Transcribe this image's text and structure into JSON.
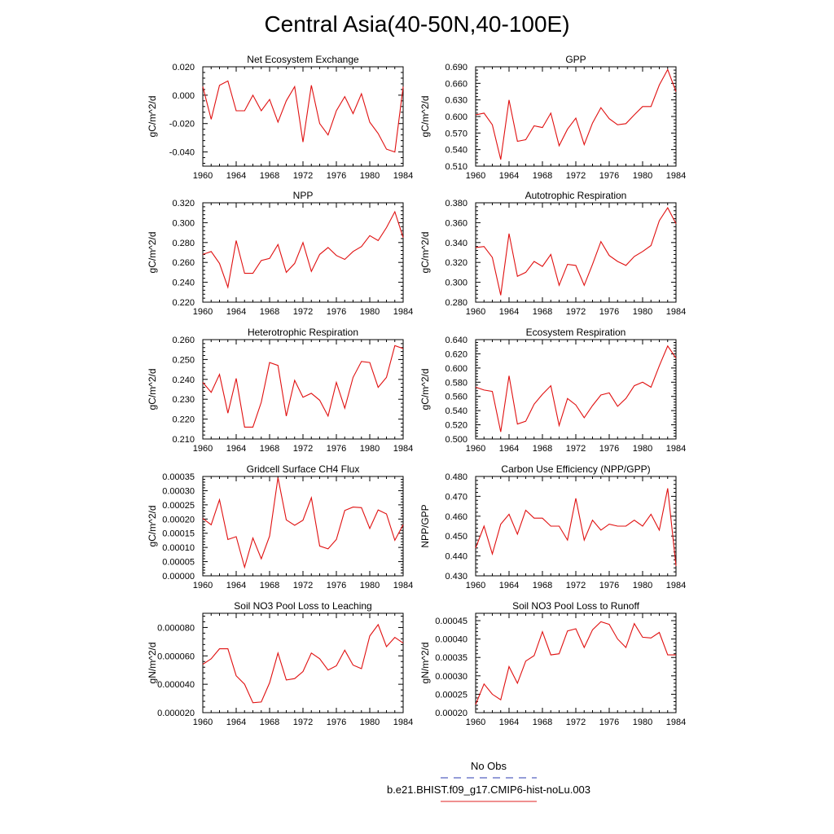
{
  "title": "Central Asia(40-50N,40-100E)",
  "legend": [
    {
      "label": "No Obs",
      "color": "#2b3bb0",
      "style": "dashed"
    },
    {
      "label": "b.e21.BHIST.f09_g17.CMIP6-hist-noLu.003",
      "color": "#e02020",
      "style": "solid"
    }
  ],
  "series_color": "#e01010",
  "chart_data": [
    {
      "type": "line",
      "title": "Net Ecosystem Exchange",
      "ylabel": "gC/m^2/d",
      "xlim": [
        1960,
        1984
      ],
      "ylim": [
        -0.05,
        0.02
      ],
      "xticks": [
        "1960",
        "1964",
        "1968",
        "1972",
        "1976",
        "1980",
        "1984"
      ],
      "yticks": [
        "0.020",
        "0.000",
        "-0.020",
        "-0.040"
      ],
      "ytick_values": [
        0.02,
        0.0,
        -0.02,
        -0.04
      ],
      "x": [
        1960,
        1961,
        1962,
        1963,
        1964,
        1965,
        1966,
        1967,
        1968,
        1969,
        1970,
        1971,
        1972,
        1973,
        1974,
        1975,
        1976,
        1977,
        1978,
        1979,
        1980,
        1981,
        1982,
        1983,
        1984
      ],
      "y": [
        0.006,
        -0.017,
        0.007,
        0.01,
        -0.011,
        -0.011,
        0.0,
        -0.011,
        -0.003,
        -0.019,
        -0.004,
        0.006,
        -0.033,
        0.007,
        -0.02,
        -0.028,
        -0.011,
        -0.001,
        -0.013,
        0.001,
        -0.019,
        -0.027,
        -0.038,
        -0.04,
        0.006
      ]
    },
    {
      "type": "line",
      "title": "GPP",
      "ylabel": "gC/m^2/d",
      "xlim": [
        1960,
        1984
      ],
      "ylim": [
        0.51,
        0.69
      ],
      "xticks": [
        "1960",
        "1964",
        "1968",
        "1972",
        "1976",
        "1980",
        "1984"
      ],
      "yticks": [
        "0.690",
        "0.660",
        "0.630",
        "0.600",
        "0.570",
        "0.540",
        "0.510"
      ],
      "ytick_values": [
        0.69,
        0.66,
        0.63,
        0.6,
        0.57,
        0.54,
        0.51
      ],
      "x": [
        1960,
        1961,
        1962,
        1963,
        1964,
        1965,
        1966,
        1967,
        1968,
        1969,
        1970,
        1971,
        1972,
        1973,
        1974,
        1975,
        1976,
        1977,
        1978,
        1979,
        1980,
        1981,
        1982,
        1983,
        1984
      ],
      "y": [
        0.603,
        0.606,
        0.585,
        0.522,
        0.63,
        0.555,
        0.558,
        0.583,
        0.58,
        0.606,
        0.547,
        0.577,
        0.597,
        0.549,
        0.588,
        0.616,
        0.596,
        0.585,
        0.587,
        0.603,
        0.618,
        0.618,
        0.657,
        0.685,
        0.645
      ]
    },
    {
      "type": "line",
      "title": "NPP",
      "ylabel": "gC/m^2/d",
      "xlim": [
        1960,
        1984
      ],
      "ylim": [
        0.22,
        0.32
      ],
      "xticks": [
        "1960",
        "1964",
        "1968",
        "1972",
        "1976",
        "1980",
        "1984"
      ],
      "yticks": [
        "0.320",
        "0.300",
        "0.280",
        "0.260",
        "0.240",
        "0.220"
      ],
      "ytick_values": [
        0.32,
        0.3,
        0.28,
        0.26,
        0.24,
        0.22
      ],
      "x": [
        1960,
        1961,
        1962,
        1963,
        1964,
        1965,
        1966,
        1967,
        1968,
        1969,
        1970,
        1971,
        1972,
        1973,
        1974,
        1975,
        1976,
        1977,
        1978,
        1979,
        1980,
        1981,
        1982,
        1983,
        1984
      ],
      "y": [
        0.268,
        0.271,
        0.259,
        0.235,
        0.282,
        0.249,
        0.249,
        0.262,
        0.264,
        0.278,
        0.25,
        0.259,
        0.28,
        0.251,
        0.268,
        0.275,
        0.267,
        0.263,
        0.271,
        0.276,
        0.287,
        0.282,
        0.295,
        0.311,
        0.285
      ]
    },
    {
      "type": "line",
      "title": "Autotrophic Respiration",
      "ylabel": "gC/m^2/d",
      "xlim": [
        1960,
        1984
      ],
      "ylim": [
        0.28,
        0.38
      ],
      "xticks": [
        "1960",
        "1964",
        "1968",
        "1972",
        "1976",
        "1980",
        "1984"
      ],
      "yticks": [
        "0.380",
        "0.360",
        "0.340",
        "0.320",
        "0.300",
        "0.280"
      ],
      "ytick_values": [
        0.38,
        0.36,
        0.34,
        0.32,
        0.3,
        0.28
      ],
      "x": [
        1960,
        1961,
        1962,
        1963,
        1964,
        1965,
        1966,
        1967,
        1968,
        1969,
        1970,
        1971,
        1972,
        1973,
        1974,
        1975,
        1976,
        1977,
        1978,
        1979,
        1980,
        1981,
        1982,
        1983,
        1984
      ],
      "y": [
        0.335,
        0.336,
        0.325,
        0.287,
        0.349,
        0.306,
        0.31,
        0.321,
        0.316,
        0.328,
        0.297,
        0.318,
        0.317,
        0.297,
        0.318,
        0.341,
        0.327,
        0.321,
        0.317,
        0.326,
        0.331,
        0.337,
        0.362,
        0.375,
        0.359
      ]
    },
    {
      "type": "line",
      "title": "Heterotrophic Respiration",
      "ylabel": "gC/m^2/d",
      "xlim": [
        1960,
        1984
      ],
      "ylim": [
        0.21,
        0.26
      ],
      "xticks": [
        "1960",
        "1964",
        "1968",
        "1972",
        "1976",
        "1980",
        "1984"
      ],
      "yticks": [
        "0.260",
        "0.250",
        "0.240",
        "0.230",
        "0.220",
        "0.210"
      ],
      "ytick_values": [
        0.26,
        0.25,
        0.24,
        0.23,
        0.22,
        0.21
      ],
      "x": [
        1960,
        1961,
        1962,
        1963,
        1964,
        1965,
        1966,
        1967,
        1968,
        1969,
        1970,
        1971,
        1972,
        1973,
        1974,
        1975,
        1976,
        1977,
        1978,
        1979,
        1980,
        1981,
        1982,
        1983,
        1984
      ],
      "y": [
        0.2385,
        0.2335,
        0.2425,
        0.223,
        0.2405,
        0.216,
        0.216,
        0.2285,
        0.2485,
        0.247,
        0.2215,
        0.2395,
        0.231,
        0.233,
        0.2295,
        0.2215,
        0.2385,
        0.2255,
        0.241,
        0.249,
        0.2485,
        0.236,
        0.241,
        0.257,
        0.2555
      ]
    },
    {
      "type": "line",
      "title": "Ecosystem Respiration",
      "ylabel": "gC/m^2/d",
      "xlim": [
        1960,
        1984
      ],
      "ylim": [
        0.5,
        0.64
      ],
      "xticks": [
        "1960",
        "1964",
        "1968",
        "1972",
        "1976",
        "1980",
        "1984"
      ],
      "yticks": [
        "0.640",
        "0.620",
        "0.600",
        "0.580",
        "0.560",
        "0.540",
        "0.520",
        "0.500"
      ],
      "ytick_values": [
        0.64,
        0.62,
        0.6,
        0.58,
        0.56,
        0.54,
        0.52,
        0.5
      ],
      "x": [
        1960,
        1961,
        1962,
        1963,
        1964,
        1965,
        1966,
        1967,
        1968,
        1969,
        1970,
        1971,
        1972,
        1973,
        1974,
        1975,
        1976,
        1977,
        1978,
        1979,
        1980,
        1981,
        1982,
        1983,
        1984
      ],
      "y": [
        0.573,
        0.569,
        0.567,
        0.51,
        0.589,
        0.521,
        0.525,
        0.549,
        0.563,
        0.575,
        0.519,
        0.557,
        0.548,
        0.53,
        0.547,
        0.562,
        0.565,
        0.546,
        0.557,
        0.575,
        0.58,
        0.573,
        0.603,
        0.631,
        0.614
      ]
    },
    {
      "type": "line",
      "title": "Gridcell Surface CH4 Flux",
      "ylabel": "gC/m^2/d",
      "xlim": [
        1960,
        1984
      ],
      "ylim": [
        0.0,
        0.00035
      ],
      "xticks": [
        "1960",
        "1964",
        "1968",
        "1972",
        "1976",
        "1980",
        "1984"
      ],
      "yticks": [
        "0.00035",
        "0.00030",
        "0.00025",
        "0.00020",
        "0.00015",
        "0.00010",
        "0.00005",
        "0.00000"
      ],
      "ytick_values": [
        0.00035,
        0.0003,
        0.00025,
        0.0002,
        0.00015,
        0.0001,
        5e-05,
        0.0
      ],
      "x": [
        1960,
        1961,
        1962,
        1963,
        1964,
        1965,
        1966,
        1967,
        1968,
        1969,
        1970,
        1971,
        1972,
        1973,
        1974,
        1975,
        1976,
        1977,
        1978,
        1979,
        1980,
        1981,
        1982,
        1983,
        1984
      ],
      "y": [
        0.000202,
        0.00018,
        0.000268,
        0.000128,
        0.000138,
        3e-05,
        0.000133,
        6e-05,
        0.00014,
        0.000346,
        0.000197,
        0.000178,
        0.000196,
        0.000275,
        0.000105,
        9.5e-05,
        0.000128,
        0.00023,
        0.000242,
        0.00024,
        0.000167,
        0.000232,
        0.000218,
        0.000125,
        0.00018
      ]
    },
    {
      "type": "line",
      "title": "Carbon Use Efficiency (NPP/GPP)",
      "ylabel": "NPP/GPP",
      "xlim": [
        1960,
        1984
      ],
      "ylim": [
        0.43,
        0.48
      ],
      "xticks": [
        "1960",
        "1964",
        "1968",
        "1972",
        "1976",
        "1980",
        "1984"
      ],
      "yticks": [
        "0.480",
        "0.470",
        "0.460",
        "0.450",
        "0.440",
        "0.430"
      ],
      "ytick_values": [
        0.48,
        0.47,
        0.46,
        0.45,
        0.44,
        0.43
      ],
      "x": [
        1960,
        1961,
        1962,
        1963,
        1964,
        1965,
        1966,
        1967,
        1968,
        1969,
        1970,
        1971,
        1972,
        1973,
        1974,
        1975,
        1976,
        1977,
        1978,
        1979,
        1980,
        1981,
        1982,
        1983,
        1984
      ],
      "y": [
        0.444,
        0.455,
        0.441,
        0.456,
        0.461,
        0.451,
        0.463,
        0.459,
        0.459,
        0.455,
        0.455,
        0.448,
        0.469,
        0.448,
        0.458,
        0.453,
        0.456,
        0.455,
        0.455,
        0.458,
        0.455,
        0.461,
        0.453,
        0.474,
        0.435
      ]
    },
    {
      "type": "line",
      "title": "Soil NO3 Pool Loss to Leaching",
      "ylabel": "gN/m^2/d",
      "xlim": [
        1960,
        1984
      ],
      "ylim": [
        2e-05,
        9e-05
      ],
      "xticks": [
        "1960",
        "1964",
        "1968",
        "1972",
        "1976",
        "1980",
        "1984"
      ],
      "yticks": [
        "0.000080",
        "0.000060",
        "0.000040",
        "0.000020"
      ],
      "ytick_values": [
        8e-05,
        6e-05,
        4e-05,
        2e-05
      ],
      "x": [
        1960,
        1961,
        1962,
        1963,
        1964,
        1965,
        1966,
        1967,
        1968,
        1969,
        1970,
        1971,
        1972,
        1973,
        1974,
        1975,
        1976,
        1977,
        1978,
        1979,
        1980,
        1981,
        1982,
        1983,
        1984
      ],
      "y": [
        5.4e-05,
        5.8e-05,
        6.5e-05,
        6.5e-05,
        4.6e-05,
        4e-05,
        2.7e-05,
        2.75e-05,
        4.1e-05,
        6.2e-05,
        4.3e-05,
        4.4e-05,
        4.9e-05,
        6.2e-05,
        5.8e-05,
        5e-05,
        5.3e-05,
        6.4e-05,
        5.35e-05,
        5.1e-05,
        7.4e-05,
        8.2e-05,
        6.65e-05,
        7.3e-05,
        6.9e-05
      ]
    },
    {
      "type": "line",
      "title": "Soil NO3 Pool Loss to Runoff",
      "ylabel": "gN/m^2/d",
      "xlim": [
        1960,
        1984
      ],
      "ylim": [
        0.0002,
        0.00047
      ],
      "xticks": [
        "1960",
        "1964",
        "1968",
        "1972",
        "1976",
        "1980",
        "1984"
      ],
      "yticks": [
        "0.00045",
        "0.00040",
        "0.00035",
        "0.00030",
        "0.00025",
        "0.00020"
      ],
      "ytick_values": [
        0.00045,
        0.0004,
        0.00035,
        0.0003,
        0.00025,
        0.0002
      ],
      "x": [
        1960,
        1961,
        1962,
        1963,
        1964,
        1965,
        1966,
        1967,
        1968,
        1969,
        1970,
        1971,
        1972,
        1973,
        1974,
        1975,
        1976,
        1977,
        1978,
        1979,
        1980,
        1981,
        1982,
        1983,
        1984
      ],
      "y": [
        0.000222,
        0.000278,
        0.00025,
        0.000235,
        0.000325,
        0.00028,
        0.00034,
        0.000355,
        0.00042,
        0.000357,
        0.00036,
        0.000422,
        0.000428,
        0.000377,
        0.000425,
        0.000447,
        0.00044,
        0.0004,
        0.000377,
        0.000442,
        0.000405,
        0.000403,
        0.000418,
        0.000357,
        0.000357
      ]
    }
  ]
}
